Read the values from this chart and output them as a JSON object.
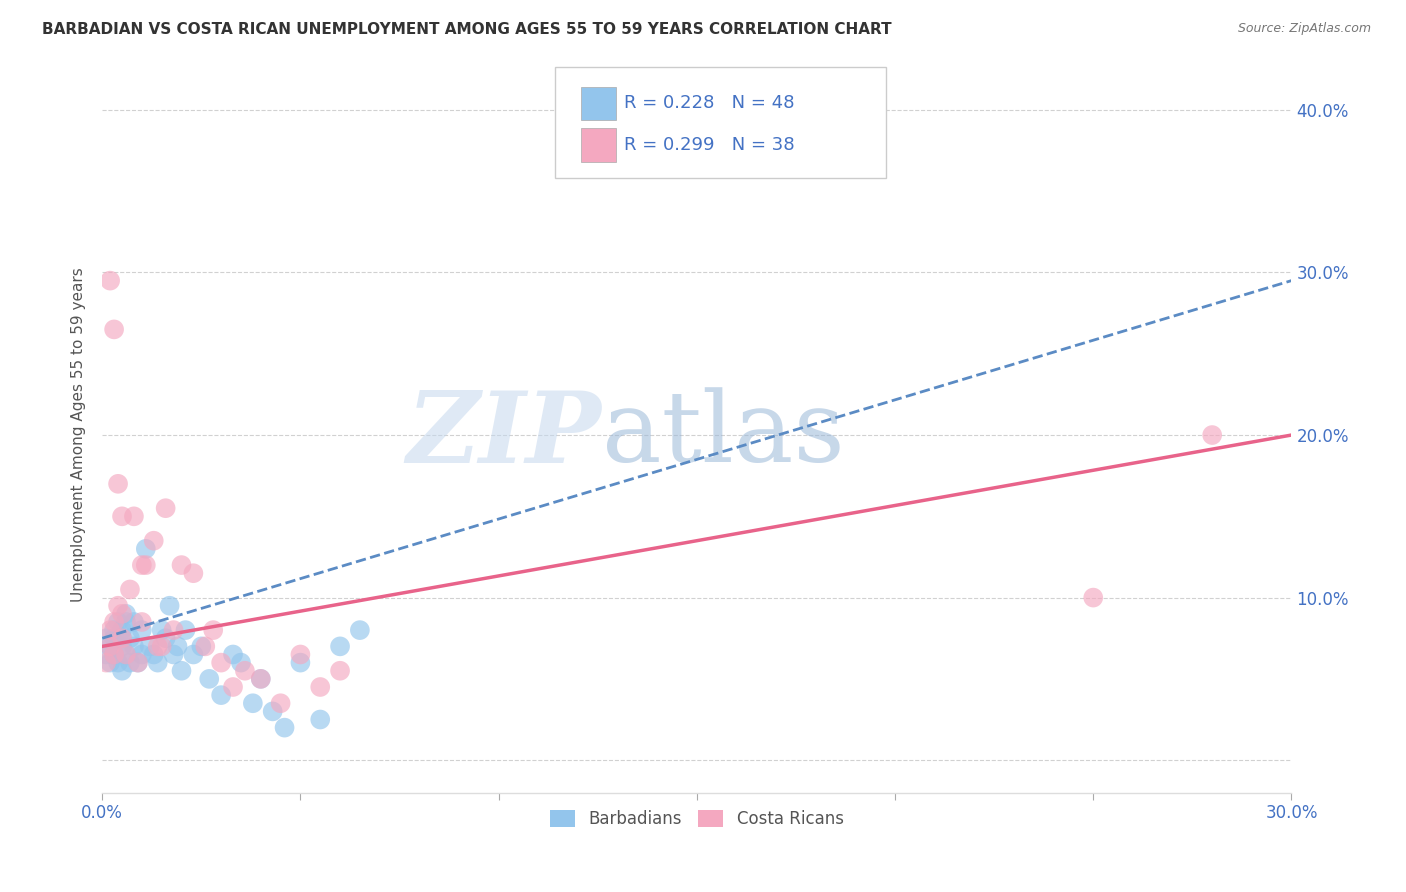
{
  "title": "BARBADIAN VS COSTA RICAN UNEMPLOYMENT AMONG AGES 55 TO 59 YEARS CORRELATION CHART",
  "source": "Source: ZipAtlas.com",
  "ylabel": "Unemployment Among Ages 55 to 59 years",
  "xlim": [
    0.0,
    0.3
  ],
  "ylim": [
    -0.02,
    0.42
  ],
  "xticks": [
    0.0,
    0.05,
    0.1,
    0.15,
    0.2,
    0.25,
    0.3
  ],
  "xtick_labels": [
    "0.0%",
    "",
    "",
    "",
    "",
    "",
    "30.0%"
  ],
  "yticks": [
    0.0,
    0.1,
    0.2,
    0.3,
    0.4
  ],
  "ytick_labels": [
    "",
    "10.0%",
    "20.0%",
    "30.0%",
    "40.0%"
  ],
  "barbadian_color": "#93C5EC",
  "costarican_color": "#F4A8C0",
  "barbadian_line_color": "#5B8BC4",
  "costarican_line_color": "#E8638A",
  "R_barbadian": 0.228,
  "N_barbadian": 48,
  "R_costarican": 0.299,
  "N_costarican": 38,
  "watermark_zip": "ZIP",
  "watermark_atlas": "atlas",
  "background_color": "#FFFFFF",
  "grid_color": "#CCCCCC",
  "barbadian_line_x0": 0.0,
  "barbadian_line_y0": 0.075,
  "barbadian_line_x1": 0.3,
  "barbadian_line_y1": 0.295,
  "costarican_line_x0": 0.0,
  "costarican_line_y0": 0.07,
  "costarican_line_x1": 0.3,
  "costarican_line_y1": 0.2,
  "barbadian_x": [
    0.001,
    0.001,
    0.002,
    0.002,
    0.003,
    0.003,
    0.003,
    0.004,
    0.004,
    0.005,
    0.005,
    0.005,
    0.005,
    0.006,
    0.006,
    0.006,
    0.007,
    0.007,
    0.008,
    0.008,
    0.009,
    0.01,
    0.01,
    0.011,
    0.012,
    0.013,
    0.014,
    0.015,
    0.016,
    0.017,
    0.018,
    0.019,
    0.02,
    0.021,
    0.023,
    0.025,
    0.027,
    0.03,
    0.033,
    0.035,
    0.038,
    0.04,
    0.043,
    0.046,
    0.05,
    0.055,
    0.06,
    0.065
  ],
  "barbadian_y": [
    0.065,
    0.075,
    0.06,
    0.07,
    0.065,
    0.075,
    0.08,
    0.06,
    0.085,
    0.055,
    0.07,
    0.075,
    0.08,
    0.065,
    0.085,
    0.09,
    0.06,
    0.075,
    0.07,
    0.085,
    0.06,
    0.065,
    0.08,
    0.13,
    0.07,
    0.065,
    0.06,
    0.08,
    0.075,
    0.095,
    0.065,
    0.07,
    0.055,
    0.08,
    0.065,
    0.07,
    0.05,
    0.04,
    0.065,
    0.06,
    0.035,
    0.05,
    0.03,
    0.02,
    0.06,
    0.025,
    0.07,
    0.08
  ],
  "costarican_x": [
    0.001,
    0.002,
    0.002,
    0.003,
    0.003,
    0.004,
    0.005,
    0.005,
    0.006,
    0.007,
    0.008,
    0.009,
    0.01,
    0.011,
    0.013,
    0.014,
    0.016,
    0.018,
    0.02,
    0.023,
    0.026,
    0.028,
    0.03,
    0.033,
    0.036,
    0.04,
    0.045,
    0.05,
    0.055,
    0.06,
    0.002,
    0.003,
    0.004,
    0.005,
    0.01,
    0.015,
    0.25,
    0.28
  ],
  "costarican_y": [
    0.06,
    0.07,
    0.08,
    0.065,
    0.085,
    0.095,
    0.075,
    0.09,
    0.065,
    0.105,
    0.15,
    0.06,
    0.085,
    0.12,
    0.135,
    0.07,
    0.155,
    0.08,
    0.12,
    0.115,
    0.07,
    0.08,
    0.06,
    0.045,
    0.055,
    0.05,
    0.035,
    0.065,
    0.045,
    0.055,
    0.295,
    0.265,
    0.17,
    0.15,
    0.12,
    0.07,
    0.1,
    0.2
  ]
}
